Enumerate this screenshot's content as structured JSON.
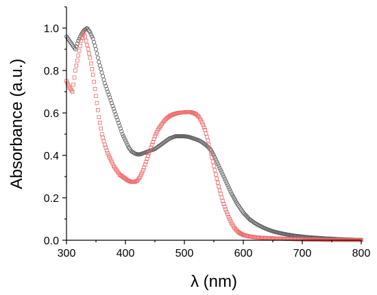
{
  "chart_data": {
    "type": "scatter",
    "xlabel": "λ (nm)",
    "ylabel": "Absorbance (a.u.)",
    "xlim": [
      300,
      800
    ],
    "ylim": [
      0.0,
      1.1
    ],
    "x_ticks": [
      "300",
      "400",
      "500",
      "600",
      "700",
      "800"
    ],
    "y_ticks": [
      "0.0",
      "0.2",
      "0.4",
      "0.6",
      "0.8",
      "1.0"
    ],
    "grid": false,
    "legend": "none",
    "series": [
      {
        "color": "#606060",
        "marker": "open-circle",
        "points": [
          [
            300,
            0.96
          ],
          [
            305,
            0.94
          ],
          [
            310,
            0.92
          ],
          [
            315,
            0.9
          ],
          [
            320,
            0.94
          ],
          [
            325,
            0.97
          ],
          [
            330,
            0.99
          ],
          [
            335,
            1.0
          ],
          [
            340,
            0.98
          ],
          [
            345,
            0.95
          ],
          [
            350,
            0.9
          ],
          [
            355,
            0.84
          ],
          [
            360,
            0.79
          ],
          [
            365,
            0.74
          ],
          [
            370,
            0.7
          ],
          [
            375,
            0.66
          ],
          [
            380,
            0.62
          ],
          [
            385,
            0.58
          ],
          [
            390,
            0.54
          ],
          [
            395,
            0.5
          ],
          [
            400,
            0.47
          ],
          [
            405,
            0.44
          ],
          [
            410,
            0.42
          ],
          [
            415,
            0.41
          ],
          [
            420,
            0.405
          ],
          [
            425,
            0.405
          ],
          [
            430,
            0.41
          ],
          [
            435,
            0.415
          ],
          [
            440,
            0.42
          ],
          [
            445,
            0.425
          ],
          [
            450,
            0.43
          ],
          [
            455,
            0.44
          ],
          [
            460,
            0.45
          ],
          [
            465,
            0.46
          ],
          [
            470,
            0.47
          ],
          [
            475,
            0.48
          ],
          [
            480,
            0.485
          ],
          [
            485,
            0.49
          ],
          [
            490,
            0.49
          ],
          [
            495,
            0.49
          ],
          [
            500,
            0.49
          ],
          [
            505,
            0.488
          ],
          [
            510,
            0.485
          ],
          [
            515,
            0.48
          ],
          [
            520,
            0.475
          ],
          [
            525,
            0.47
          ],
          [
            530,
            0.462
          ],
          [
            535,
            0.452
          ],
          [
            540,
            0.44
          ],
          [
            545,
            0.425
          ],
          [
            550,
            0.4
          ],
          [
            555,
            0.37
          ],
          [
            560,
            0.34
          ],
          [
            565,
            0.31
          ],
          [
            570,
            0.28
          ],
          [
            575,
            0.25
          ],
          [
            580,
            0.22
          ],
          [
            585,
            0.195
          ],
          [
            590,
            0.17
          ],
          [
            595,
            0.15
          ],
          [
            600,
            0.13
          ],
          [
            605,
            0.115
          ],
          [
            610,
            0.1
          ],
          [
            615,
            0.09
          ],
          [
            620,
            0.08
          ],
          [
            625,
            0.072
          ],
          [
            630,
            0.065
          ],
          [
            635,
            0.058
          ],
          [
            640,
            0.052
          ],
          [
            645,
            0.047
          ],
          [
            650,
            0.042
          ],
          [
            660,
            0.035
          ],
          [
            670,
            0.029
          ],
          [
            680,
            0.024
          ],
          [
            690,
            0.02
          ],
          [
            700,
            0.017
          ],
          [
            710,
            0.014
          ],
          [
            720,
            0.012
          ],
          [
            730,
            0.01
          ],
          [
            740,
            0.008
          ],
          [
            750,
            0.007
          ],
          [
            760,
            0.005
          ],
          [
            770,
            0.004
          ],
          [
            780,
            0.003
          ],
          [
            790,
            0.002
          ],
          [
            800,
            0.002
          ]
        ]
      },
      {
        "color": "#ee6666",
        "marker": "open-square",
        "points": [
          [
            300,
            0.75
          ],
          [
            305,
            0.72
          ],
          [
            310,
            0.7
          ],
          [
            315,
            0.8
          ],
          [
            320,
            0.87
          ],
          [
            325,
            0.94
          ],
          [
            330,
            0.98
          ],
          [
            335,
            0.92
          ],
          [
            340,
            0.86
          ],
          [
            345,
            0.78
          ],
          [
            350,
            0.68
          ],
          [
            355,
            0.58
          ],
          [
            360,
            0.5
          ],
          [
            365,
            0.45
          ],
          [
            370,
            0.41
          ],
          [
            375,
            0.38
          ],
          [
            380,
            0.35
          ],
          [
            385,
            0.33
          ],
          [
            390,
            0.31
          ],
          [
            395,
            0.3
          ],
          [
            400,
            0.29
          ],
          [
            405,
            0.28
          ],
          [
            410,
            0.275
          ],
          [
            415,
            0.275
          ],
          [
            420,
            0.28
          ],
          [
            425,
            0.3
          ],
          [
            430,
            0.33
          ],
          [
            435,
            0.37
          ],
          [
            440,
            0.41
          ],
          [
            445,
            0.45
          ],
          [
            450,
            0.49
          ],
          [
            455,
            0.52
          ],
          [
            460,
            0.54
          ],
          [
            465,
            0.56
          ],
          [
            470,
            0.575
          ],
          [
            475,
            0.585
          ],
          [
            480,
            0.592
          ],
          [
            485,
            0.597
          ],
          [
            490,
            0.6
          ],
          [
            495,
            0.602
          ],
          [
            500,
            0.603
          ],
          [
            505,
            0.604
          ],
          [
            510,
            0.604
          ],
          [
            515,
            0.6
          ],
          [
            520,
            0.594
          ],
          [
            525,
            0.58
          ],
          [
            530,
            0.555
          ],
          [
            535,
            0.52
          ],
          [
            540,
            0.47
          ],
          [
            545,
            0.41
          ],
          [
            550,
            0.35
          ],
          [
            555,
            0.29
          ],
          [
            560,
            0.235
          ],
          [
            565,
            0.185
          ],
          [
            570,
            0.145
          ],
          [
            575,
            0.11
          ],
          [
            580,
            0.08
          ],
          [
            585,
            0.058
          ],
          [
            590,
            0.042
          ],
          [
            595,
            0.032
          ],
          [
            600,
            0.025
          ],
          [
            610,
            0.018
          ],
          [
            620,
            0.014
          ],
          [
            630,
            0.012
          ],
          [
            640,
            0.01
          ],
          [
            650,
            0.009
          ],
          [
            660,
            0.008
          ],
          [
            670,
            0.007
          ],
          [
            680,
            0.006
          ],
          [
            690,
            0.005
          ],
          [
            700,
            0.004
          ],
          [
            720,
            0.003
          ],
          [
            740,
            0.002
          ],
          [
            760,
            0.002
          ],
          [
            780,
            0.001
          ],
          [
            800,
            0.001
          ]
        ]
      }
    ]
  }
}
